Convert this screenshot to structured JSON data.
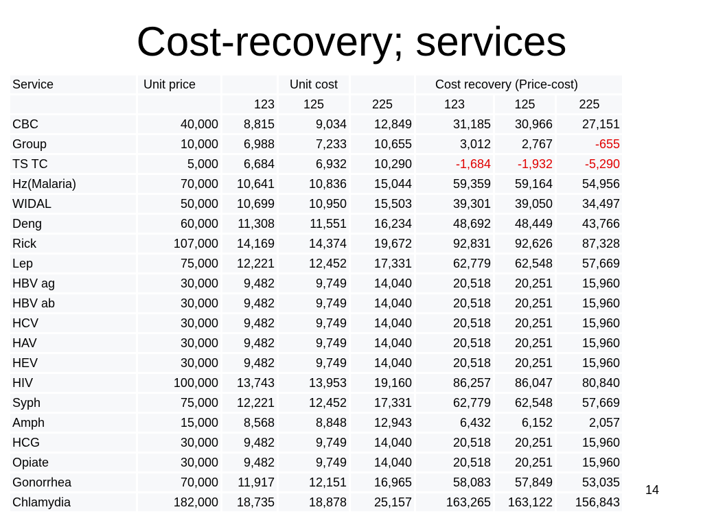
{
  "slide": {
    "title": "Cost-recovery; services",
    "number": "14"
  },
  "table": {
    "header_row1": {
      "service": "Service",
      "unit_price": "Unit price",
      "unit_cost": "Unit cost",
      "cost_recovery": "Cost recovery (Price-cost)"
    },
    "header_row2": [
      "123",
      "125",
      "225",
      "123",
      "125",
      "225"
    ],
    "rows": [
      {
        "service": "CBC",
        "price": "40,000",
        "cost": [
          "8,815",
          "9,034",
          "12,849"
        ],
        "recovery": [
          "31,185",
          "30,966",
          "27,151"
        ]
      },
      {
        "service": "Group",
        "price": "10,000",
        "cost": [
          "6,988",
          "7,233",
          "10,655"
        ],
        "recovery": [
          "3,012",
          "2,767",
          "-655"
        ]
      },
      {
        "service": "TS TC",
        "price": "5,000",
        "cost": [
          "6,684",
          "6,932",
          "10,290"
        ],
        "recovery": [
          "-1,684",
          "-1,932",
          "-5,290"
        ]
      },
      {
        "service": "Hz(Malaria)",
        "price": "70,000",
        "cost": [
          "10,641",
          "10,836",
          "15,044"
        ],
        "recovery": [
          "59,359",
          "59,164",
          "54,956"
        ]
      },
      {
        "service": "WIDAL",
        "price": "50,000",
        "cost": [
          "10,699",
          "10,950",
          "15,503"
        ],
        "recovery": [
          "39,301",
          "39,050",
          "34,497"
        ]
      },
      {
        "service": "Deng",
        "price": "60,000",
        "cost": [
          "11,308",
          "11,551",
          "16,234"
        ],
        "recovery": [
          "48,692",
          "48,449",
          "43,766"
        ]
      },
      {
        "service": "Rick",
        "price": "107,000",
        "cost": [
          "14,169",
          "14,374",
          "19,672"
        ],
        "recovery": [
          "92,831",
          "92,626",
          "87,328"
        ]
      },
      {
        "service": "Lep",
        "price": "75,000",
        "cost": [
          "12,221",
          "12,452",
          "17,331"
        ],
        "recovery": [
          "62,779",
          "62,548",
          "57,669"
        ]
      },
      {
        "service": "HBV ag",
        "price": "30,000",
        "cost": [
          "9,482",
          "9,749",
          "14,040"
        ],
        "recovery": [
          "20,518",
          "20,251",
          "15,960"
        ]
      },
      {
        "service": "HBV ab",
        "price": "30,000",
        "cost": [
          "9,482",
          "9,749",
          "14,040"
        ],
        "recovery": [
          "20,518",
          "20,251",
          "15,960"
        ]
      },
      {
        "service": "HCV",
        "price": "30,000",
        "cost": [
          "9,482",
          "9,749",
          "14,040"
        ],
        "recovery": [
          "20,518",
          "20,251",
          "15,960"
        ]
      },
      {
        "service": "HAV",
        "price": "30,000",
        "cost": [
          "9,482",
          "9,749",
          "14,040"
        ],
        "recovery": [
          "20,518",
          "20,251",
          "15,960"
        ]
      },
      {
        "service": "HEV",
        "price": "30,000",
        "cost": [
          "9,482",
          "9,749",
          "14,040"
        ],
        "recovery": [
          "20,518",
          "20,251",
          "15,960"
        ]
      },
      {
        "service": "HIV",
        "price": "100,000",
        "cost": [
          "13,743",
          "13,953",
          "19,160"
        ],
        "recovery": [
          "86,257",
          "86,047",
          "80,840"
        ]
      },
      {
        "service": "Syph",
        "price": "75,000",
        "cost": [
          "12,221",
          "12,452",
          "17,331"
        ],
        "recovery": [
          "62,779",
          "62,548",
          "57,669"
        ]
      },
      {
        "service": "Amph",
        "price": "15,000",
        "cost": [
          "8,568",
          "8,848",
          "12,943"
        ],
        "recovery": [
          "6,432",
          "6,152",
          "2,057"
        ]
      },
      {
        "service": "HCG",
        "price": "30,000",
        "cost": [
          "9,482",
          "9,749",
          "14,040"
        ],
        "recovery": [
          "20,518",
          "20,251",
          "15,960"
        ]
      },
      {
        "service": "Opiate",
        "price": "30,000",
        "cost": [
          "9,482",
          "9,749",
          "14,040"
        ],
        "recovery": [
          "20,518",
          "20,251",
          "15,960"
        ]
      },
      {
        "service": "Gonorrhea",
        "price": "70,000",
        "cost": [
          "11,917",
          "12,151",
          "16,965"
        ],
        "recovery": [
          "58,083",
          "57,849",
          "53,035"
        ]
      },
      {
        "service": "Chlamydia",
        "price": "182,000",
        "cost": [
          "18,735",
          "18,878",
          "25,157"
        ],
        "recovery": [
          "163,265",
          "163,122",
          "156,843"
        ]
      }
    ],
    "negative_color": "#e00000"
  }
}
